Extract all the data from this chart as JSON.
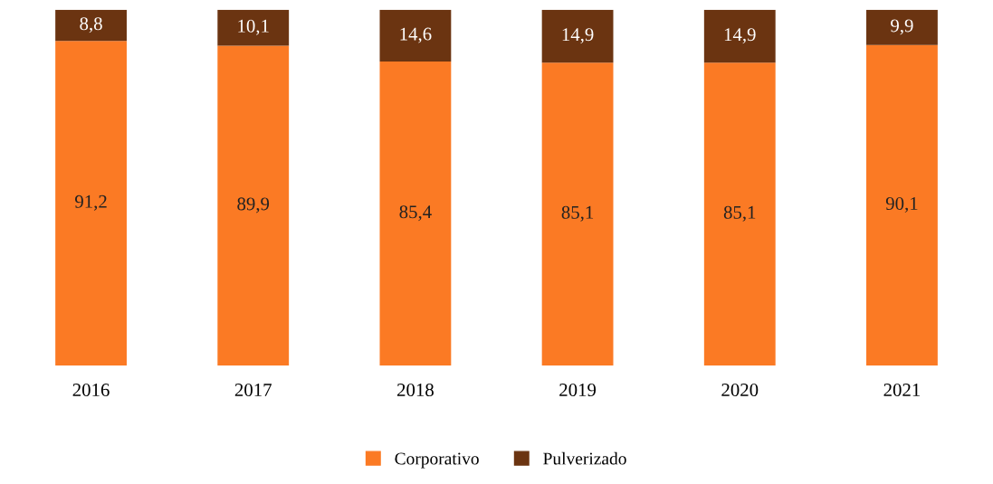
{
  "chart_data": {
    "type": "bar",
    "stacked": true,
    "categories": [
      "2016",
      "2017",
      "2018",
      "2019",
      "2020",
      "2021"
    ],
    "series": [
      {
        "name": "Corporativo",
        "color": "#fb7a24",
        "values": [
          91.2,
          89.9,
          85.4,
          85.1,
          85.1,
          90.1
        ],
        "value_labels": [
          "91,2",
          "89,9",
          "85,4",
          "85,1",
          "85,1",
          "90,1"
        ]
      },
      {
        "name": "Pulverizado",
        "color": "#6b3411",
        "values": [
          8.8,
          10.1,
          14.6,
          14.9,
          14.9,
          9.9
        ],
        "value_labels": [
          "8,8",
          "10,1",
          "14,6",
          "14,9",
          "14,9",
          "9,9"
        ]
      }
    ],
    "legend": "bottom",
    "grid": false,
    "tick_labels": "x"
  }
}
